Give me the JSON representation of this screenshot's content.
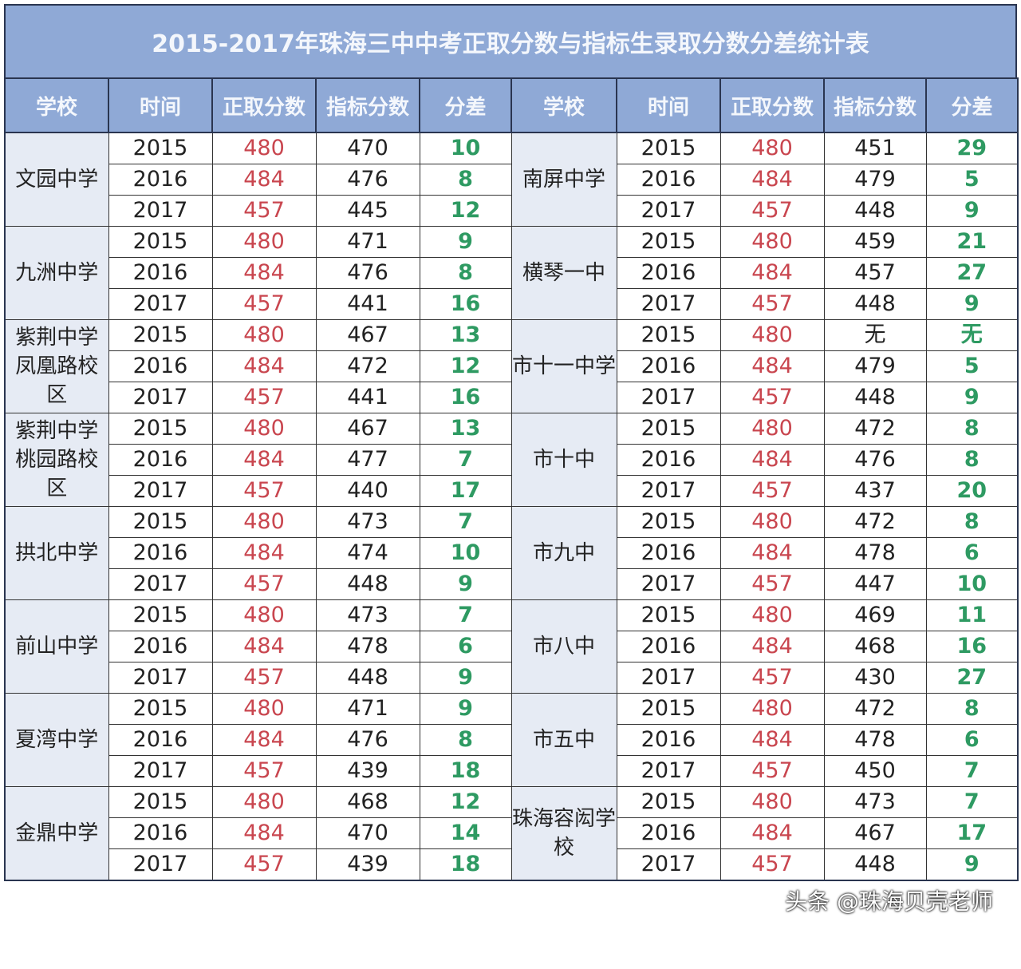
{
  "title": "2015-2017年珠海三中中考正取分数与指标生录取分数分差统计表",
  "headers": [
    "学校",
    "时间",
    "正取分数",
    "指标分数",
    "分差",
    "学校",
    "时间",
    "正取分数",
    "指标分数",
    "分差"
  ],
  "left": [
    {
      "school": "文园中学",
      "rows": [
        [
          "2015",
          "480",
          "470",
          "10"
        ],
        [
          "2016",
          "484",
          "476",
          "8"
        ],
        [
          "2017",
          "457",
          "445",
          "12"
        ]
      ]
    },
    {
      "school": "九洲中学",
      "rows": [
        [
          "2015",
          "480",
          "471",
          "9"
        ],
        [
          "2016",
          "484",
          "476",
          "8"
        ],
        [
          "2017",
          "457",
          "441",
          "16"
        ]
      ]
    },
    {
      "school": "紫荆中学凤凰路校区",
      "rows": [
        [
          "2015",
          "480",
          "467",
          "13"
        ],
        [
          "2016",
          "484",
          "472",
          "12"
        ],
        [
          "2017",
          "457",
          "441",
          "16"
        ]
      ]
    },
    {
      "school": "紫荆中学桃园路校区",
      "rows": [
        [
          "2015",
          "480",
          "467",
          "13"
        ],
        [
          "2016",
          "484",
          "477",
          "7"
        ],
        [
          "2017",
          "457",
          "440",
          "17"
        ]
      ]
    },
    {
      "school": "拱北中学",
      "rows": [
        [
          "2015",
          "480",
          "473",
          "7"
        ],
        [
          "2016",
          "484",
          "474",
          "10"
        ],
        [
          "2017",
          "457",
          "448",
          "9"
        ]
      ]
    },
    {
      "school": "前山中学",
      "rows": [
        [
          "2015",
          "480",
          "473",
          "7"
        ],
        [
          "2016",
          "484",
          "478",
          "6"
        ],
        [
          "2017",
          "457",
          "448",
          "9"
        ]
      ]
    },
    {
      "school": "夏湾中学",
      "rows": [
        [
          "2015",
          "480",
          "471",
          "9"
        ],
        [
          "2016",
          "484",
          "476",
          "8"
        ],
        [
          "2017",
          "457",
          "439",
          "18"
        ]
      ]
    },
    {
      "school": "金鼎中学",
      "rows": [
        [
          "2015",
          "480",
          "468",
          "12"
        ],
        [
          "2016",
          "484",
          "470",
          "14"
        ],
        [
          "2017",
          "457",
          "439",
          "18"
        ]
      ]
    }
  ],
  "right": [
    {
      "school": "南屏中学",
      "rows": [
        [
          "2015",
          "480",
          "451",
          "29"
        ],
        [
          "2016",
          "484",
          "479",
          "5"
        ],
        [
          "2017",
          "457",
          "448",
          "9"
        ]
      ]
    },
    {
      "school": "横琴一中",
      "rows": [
        [
          "2015",
          "480",
          "459",
          "21"
        ],
        [
          "2016",
          "484",
          "457",
          "27"
        ],
        [
          "2017",
          "457",
          "448",
          "9"
        ]
      ]
    },
    {
      "school": "市十一中学",
      "rows": [
        [
          "2015",
          "480",
          "无",
          "无"
        ],
        [
          "2016",
          "484",
          "479",
          "5"
        ],
        [
          "2017",
          "457",
          "448",
          "9"
        ]
      ]
    },
    {
      "school": "市十中",
      "rows": [
        [
          "2015",
          "480",
          "472",
          "8"
        ],
        [
          "2016",
          "484",
          "476",
          "8"
        ],
        [
          "2017",
          "457",
          "437",
          "20"
        ]
      ]
    },
    {
      "school": "市九中",
      "rows": [
        [
          "2015",
          "480",
          "472",
          "8"
        ],
        [
          "2016",
          "484",
          "478",
          "6"
        ],
        [
          "2017",
          "457",
          "447",
          "10"
        ]
      ]
    },
    {
      "school": "市八中",
      "rows": [
        [
          "2015",
          "480",
          "469",
          "11"
        ],
        [
          "2016",
          "484",
          "468",
          "16"
        ],
        [
          "2017",
          "457",
          "430",
          "27"
        ]
      ]
    },
    {
      "school": "市五中",
      "rows": [
        [
          "2015",
          "480",
          "472",
          "8"
        ],
        [
          "2016",
          "484",
          "478",
          "6"
        ],
        [
          "2017",
          "457",
          "450",
          "7"
        ]
      ]
    },
    {
      "school": "珠海容闳学校",
      "rows": [
        [
          "2015",
          "480",
          "473",
          "7"
        ],
        [
          "2016",
          "484",
          "467",
          "17"
        ],
        [
          "2017",
          "457",
          "448",
          "9"
        ]
      ]
    }
  ],
  "watermark": "头条 @珠海贝壳老师"
}
